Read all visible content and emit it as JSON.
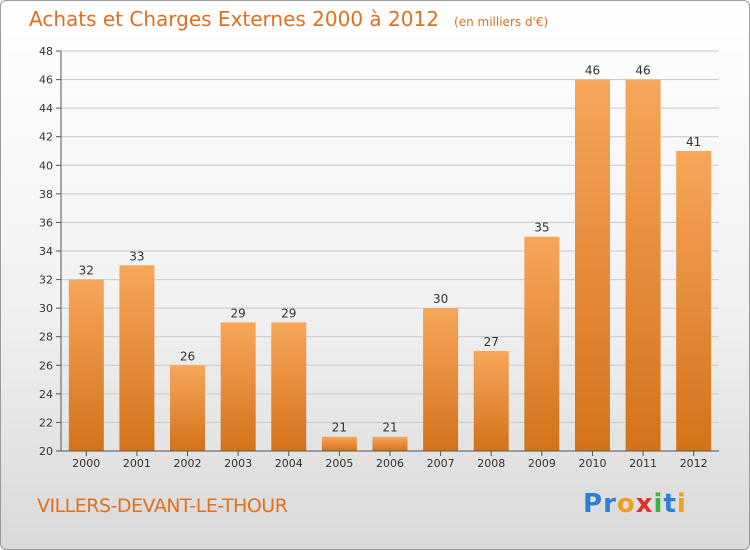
{
  "header": {
    "title": "Achats et Charges Externes 2000 à 2012",
    "subtitle": "(en milliers d'€)"
  },
  "footer": {
    "commune": "VILLERS-DEVANT-LE-THOUR",
    "logo_letters": [
      {
        "char": "P",
        "color": "#2f7fd0"
      },
      {
        "char": "r",
        "color": "#2f7fd0"
      },
      {
        "char": "o",
        "color": "#f0a020"
      },
      {
        "char": "x",
        "color": "#e03030"
      },
      {
        "char": "i",
        "color": "#40b040"
      },
      {
        "char": "t",
        "color": "#2f7fd0"
      },
      {
        "char": "i",
        "color": "#f0a020"
      }
    ]
  },
  "colors": {
    "title": "#e0701f",
    "bar_top": "#f7a65a",
    "bar_bottom": "#d4721a",
    "grid": "#c8c8c8"
  },
  "chart_data": {
    "type": "bar",
    "title": "Achats et Charges Externes 2000 à 2012",
    "subtitle": "(en milliers d'€)",
    "categories": [
      "2000",
      "2001",
      "2002",
      "2003",
      "2004",
      "2005",
      "2006",
      "2007",
      "2008",
      "2009",
      "2010",
      "2011",
      "2012"
    ],
    "values": [
      32,
      33,
      26,
      29,
      29,
      21,
      21,
      30,
      27,
      35,
      46,
      46,
      41
    ],
    "data_labels": [
      "32",
      "33",
      "26",
      "29",
      "29",
      "21",
      "21",
      "30",
      "27",
      "35",
      "46",
      "46",
      "41"
    ],
    "ylim": [
      20,
      48
    ],
    "yticks": [
      "20",
      "22",
      "24",
      "26",
      "28",
      "30",
      "32",
      "34",
      "36",
      "38",
      "40",
      "42",
      "44",
      "46",
      "48"
    ],
    "grid": true
  }
}
